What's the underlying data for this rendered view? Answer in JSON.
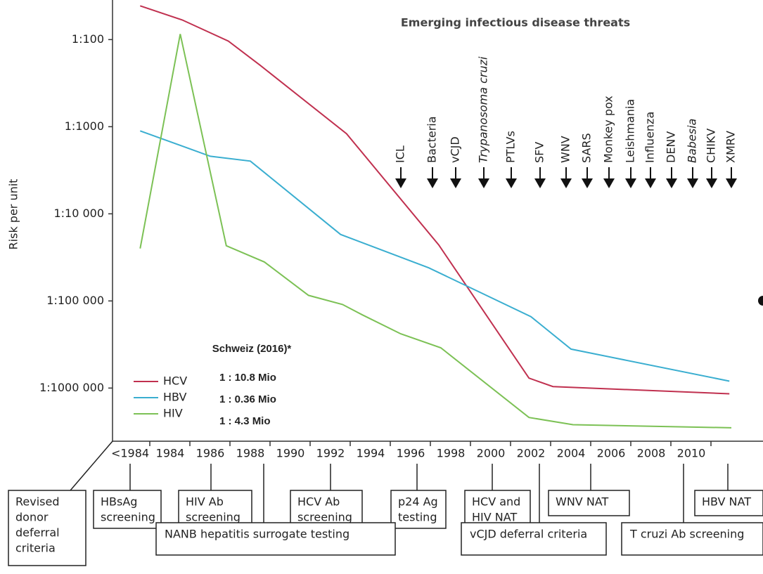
{
  "chart_data": {
    "type": "line",
    "yscale": "log",
    "ylabel": "Risk per unit",
    "annotation": "Emerging infectious disease threats",
    "threats": [
      "ICL",
      "Bacteria",
      "vCJD",
      "Trypanosoma cruzi",
      "PTLVs",
      "SFV",
      "WNV",
      "SARS",
      "Monkey pox",
      "Leishmania",
      "Influenza",
      "DENV",
      "Babesia",
      "CHIKV",
      "XMRV"
    ],
    "xlim": [
      1981,
      2013.5
    ],
    "xticks": [
      {
        "value": 1982,
        "label": "<1984"
      },
      1984,
      1986,
      1988,
      1990,
      1992,
      1994,
      1996,
      1998,
      2000,
      2002,
      2004,
      2006,
      2008,
      2010
    ],
    "ylim": [
      2.5e-07,
      0.025
    ],
    "yticks": [
      {
        "value": 0.01,
        "label": "1:100"
      },
      {
        "value": 0.001,
        "label": "1:1000"
      },
      {
        "value": 0.0001,
        "label": "1:10 000"
      },
      {
        "value": 1e-05,
        "label": "1:100 000"
      },
      {
        "value": 1e-06,
        "label": "1:1000 000"
      }
    ],
    "series": [
      {
        "name": "HCV",
        "color": "#c0304f",
        "x": [
          1982.5,
          1984.6,
          1986.9,
          1988.5,
          1992.8,
          1997.4,
          2001.9,
          2003.1,
          2011.9
        ],
        "values": [
          0.0244,
          0.0168,
          0.0096,
          0.00504,
          0.00083,
          4.4e-05,
          1.3e-06,
          1.04e-06,
          8.6e-07
        ]
      },
      {
        "name": "HBV",
        "color": "#3aaed0",
        "x": [
          1982.5,
          1986.0,
          1988.0,
          1992.5,
          1996.9,
          2002.0,
          2004.0,
          2011.9
        ],
        "values": [
          0.000895,
          0.000458,
          0.000403,
          5.8e-05,
          2.4e-05,
          6.6e-06,
          2.8e-06,
          1.2e-06
        ]
      },
      {
        "name": "HIV",
        "color": "#7cc155",
        "x": [
          1982.5,
          1984.5,
          1986.8,
          1988.7,
          1990.9,
          1992.6,
          1993.6,
          1995.5,
          1997.5,
          2001.9,
          2004.1,
          2012.0
        ],
        "values": [
          4e-05,
          0.0116,
          4.3e-05,
          2.8e-05,
          1.16e-05,
          9.1e-06,
          6.9e-06,
          4.2e-06,
          2.9e-06,
          4.6e-07,
          3.8e-07,
          3.5e-07
        ]
      }
    ],
    "note_title": "Schweiz (2016)*",
    "notes": [
      "1 : 10.8 Mio",
      "1 : 0.36 Mio",
      "1 : 4.3 Mio"
    ]
  },
  "boxes": [
    {
      "lines": [
        "Revised",
        "donor",
        "deferral",
        "criteria"
      ]
    },
    {
      "lines": [
        "HBsAg",
        "screening"
      ]
    },
    {
      "lines": [
        "HIV Ab",
        "screening"
      ]
    },
    {
      "lines": [
        "HCV Ab",
        "screening"
      ]
    },
    {
      "lines": [
        "p24 Ag",
        "testing"
      ]
    },
    {
      "lines": [
        "HCV and",
        "HIV NAT"
      ]
    },
    {
      "lines": [
        "WNV NAT"
      ]
    },
    {
      "lines": [
        "HBV NAT"
      ]
    },
    {
      "lines": [
        "NANB hepatitis surrogate testing"
      ]
    },
    {
      "lines": [
        "vCJD deferral criteria"
      ]
    },
    {
      "lines": [
        "T cruzi Ab screening"
      ]
    }
  ]
}
